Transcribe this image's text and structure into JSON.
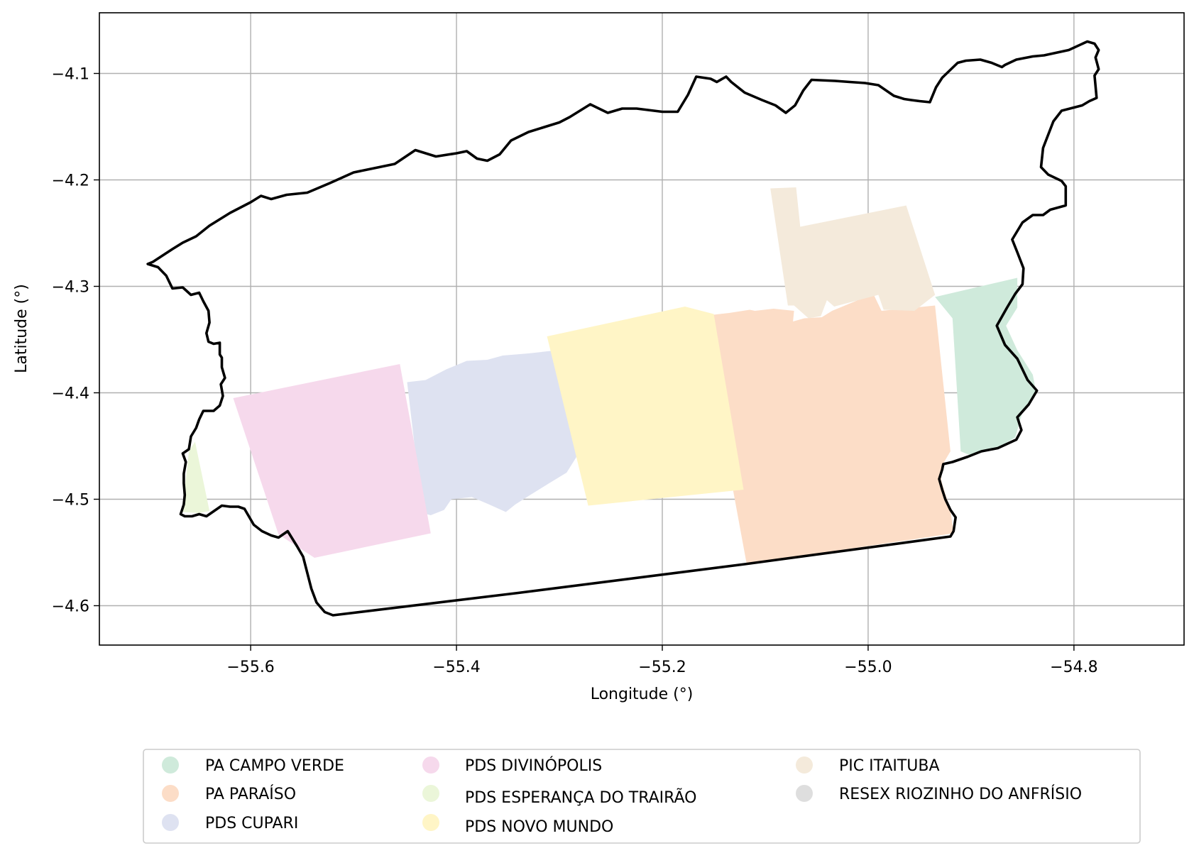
{
  "chart_data": {
    "type": "map",
    "xlabel": "Longitude (°)",
    "ylabel": "Latitude (°)",
    "xlim": [
      -55.747,
      -54.693
    ],
    "ylim": [
      -4.637,
      -4.043
    ],
    "x_ticks": [
      {
        "value": -55.6,
        "label": "−55.6"
      },
      {
        "value": -55.4,
        "label": "−55.4"
      },
      {
        "value": -55.2,
        "label": "−55.2"
      },
      {
        "value": -55.0,
        "label": "−55.0"
      },
      {
        "value": -54.8,
        "label": "−54.8"
      }
    ],
    "y_ticks": [
      {
        "value": -4.1,
        "label": "−4.1"
      },
      {
        "value": -4.2,
        "label": "−4.2"
      },
      {
        "value": -4.3,
        "label": "−4.3"
      },
      {
        "value": -4.4,
        "label": "−4.4"
      },
      {
        "value": -4.5,
        "label": "−4.5"
      },
      {
        "value": -4.6,
        "label": "−4.6"
      }
    ],
    "grid": true,
    "legend_position": "below-center",
    "boundary": {
      "color": "#000000",
      "coords": [
        [
          -55.7,
          -4.279
        ],
        [
          -55.69,
          -4.282
        ],
        [
          -55.682,
          -4.29
        ],
        [
          -55.676,
          -4.302
        ],
        [
          -55.666,
          -4.301
        ],
        [
          -55.658,
          -4.308
        ],
        [
          -55.65,
          -4.306
        ],
        [
          -55.646,
          -4.314
        ],
        [
          -55.641,
          -4.323
        ],
        [
          -55.64,
          -4.334
        ],
        [
          -55.643,
          -4.344
        ],
        [
          -55.641,
          -4.352
        ],
        [
          -55.636,
          -4.354
        ],
        [
          -55.63,
          -4.353
        ],
        [
          -55.63,
          -4.364
        ],
        [
          -55.628,
          -4.367
        ],
        [
          -55.628,
          -4.376
        ],
        [
          -55.625,
          -4.386
        ],
        [
          -55.629,
          -4.392
        ],
        [
          -55.627,
          -4.403
        ],
        [
          -55.63,
          -4.412
        ],
        [
          -55.636,
          -4.417
        ],
        [
          -55.646,
          -4.417
        ],
        [
          -55.65,
          -4.425
        ],
        [
          -55.653,
          -4.433
        ],
        [
          -55.658,
          -4.441
        ],
        [
          -55.66,
          -4.453
        ],
        [
          -55.666,
          -4.457
        ],
        [
          -55.663,
          -4.465
        ],
        [
          -55.665,
          -4.476
        ],
        [
          -55.665,
          -4.485
        ],
        [
          -55.664,
          -4.496
        ],
        [
          -55.665,
          -4.505
        ],
        [
          -55.668,
          -4.514
        ],
        [
          -55.664,
          -4.516
        ],
        [
          -55.657,
          -4.516
        ],
        [
          -55.65,
          -4.514
        ],
        [
          -55.643,
          -4.516
        ],
        [
          -55.637,
          -4.512
        ],
        [
          -55.628,
          -4.506
        ],
        [
          -55.62,
          -4.507
        ],
        [
          -55.612,
          -4.507
        ],
        [
          -55.606,
          -4.509
        ],
        [
          -55.597,
          -4.524
        ],
        [
          -55.589,
          -4.53
        ],
        [
          -55.58,
          -4.534
        ],
        [
          -55.573,
          -4.536
        ],
        [
          -55.564,
          -4.53
        ],
        [
          -55.555,
          -4.544
        ],
        [
          -55.549,
          -4.554
        ],
        [
          -55.545,
          -4.569
        ],
        [
          -55.541,
          -4.584
        ],
        [
          -55.536,
          -4.597
        ],
        [
          -55.528,
          -4.606
        ],
        [
          -55.52,
          -4.609
        ],
        [
          -55.34,
          -4.588
        ],
        [
          -55.12,
          -4.561
        ],
        [
          -54.92,
          -4.535
        ],
        [
          -54.917,
          -4.53
        ],
        [
          -54.915,
          -4.517
        ],
        [
          -54.92,
          -4.51
        ],
        [
          -54.925,
          -4.5
        ],
        [
          -54.928,
          -4.491
        ],
        [
          -54.931,
          -4.481
        ],
        [
          -54.928,
          -4.472
        ],
        [
          -54.927,
          -4.467
        ],
        [
          -54.918,
          -4.465
        ],
        [
          -54.903,
          -4.46
        ],
        [
          -54.89,
          -4.455
        ],
        [
          -54.874,
          -4.452
        ],
        [
          -54.856,
          -4.444
        ],
        [
          -54.851,
          -4.435
        ],
        [
          -54.855,
          -4.423
        ],
        [
          -54.844,
          -4.411
        ],
        [
          -54.836,
          -4.398
        ],
        [
          -54.845,
          -4.388
        ],
        [
          -54.855,
          -4.368
        ],
        [
          -54.867,
          -4.355
        ],
        [
          -54.875,
          -4.337
        ],
        [
          -54.865,
          -4.32
        ],
        [
          -54.857,
          -4.307
        ],
        [
          -54.85,
          -4.298
        ],
        [
          -54.849,
          -4.283
        ],
        [
          -54.855,
          -4.268
        ],
        [
          -54.86,
          -4.256
        ],
        [
          -54.85,
          -4.24
        ],
        [
          -54.84,
          -4.233
        ],
        [
          -54.83,
          -4.233
        ],
        [
          -54.823,
          -4.228
        ],
        [
          -54.808,
          -4.224
        ],
        [
          -54.808,
          -4.206
        ],
        [
          -54.812,
          -4.201
        ],
        [
          -54.825,
          -4.195
        ],
        [
          -54.832,
          -4.188
        ],
        [
          -54.83,
          -4.17
        ],
        [
          -54.824,
          -4.155
        ],
        [
          -54.82,
          -4.145
        ],
        [
          -54.812,
          -4.135
        ],
        [
          -54.792,
          -4.13
        ],
        [
          -54.785,
          -4.126
        ],
        [
          -54.778,
          -4.123
        ],
        [
          -54.779,
          -4.112
        ],
        [
          -54.78,
          -4.102
        ],
        [
          -54.776,
          -4.096
        ],
        [
          -54.779,
          -4.085
        ],
        [
          -54.776,
          -4.078
        ],
        [
          -54.78,
          -4.072
        ],
        [
          -54.787,
          -4.07
        ],
        [
          -54.805,
          -4.078
        ],
        [
          -54.829,
          -4.083
        ],
        [
          -54.84,
          -4.084
        ],
        [
          -54.856,
          -4.087
        ],
        [
          -54.867,
          -4.092
        ],
        [
          -54.87,
          -4.094
        ],
        [
          -54.88,
          -4.09
        ],
        [
          -54.891,
          -4.087
        ],
        [
          -54.905,
          -4.088
        ],
        [
          -54.913,
          -4.09
        ],
        [
          -54.928,
          -4.104
        ],
        [
          -54.934,
          -4.113
        ],
        [
          -54.94,
          -4.127
        ],
        [
          -54.95,
          -4.126
        ],
        [
          -54.958,
          -4.125
        ],
        [
          -54.965,
          -4.124
        ],
        [
          -54.975,
          -4.121
        ],
        [
          -54.99,
          -4.111
        ],
        [
          -55.003,
          -4.109
        ],
        [
          -55.018,
          -4.108
        ],
        [
          -55.032,
          -4.107
        ],
        [
          -55.055,
          -4.106
        ],
        [
          -55.063,
          -4.116
        ],
        [
          -55.071,
          -4.13
        ],
        [
          -55.08,
          -4.137
        ],
        [
          -55.09,
          -4.13
        ],
        [
          -55.103,
          -4.125
        ],
        [
          -55.12,
          -4.118
        ],
        [
          -55.133,
          -4.108
        ],
        [
          -55.138,
          -4.103
        ],
        [
          -55.147,
          -4.108
        ],
        [
          -55.153,
          -4.105
        ],
        [
          -55.167,
          -4.103
        ],
        [
          -55.175,
          -4.12
        ],
        [
          -55.185,
          -4.136
        ],
        [
          -55.2,
          -4.136
        ],
        [
          -55.225,
          -4.133
        ],
        [
          -55.239,
          -4.133
        ],
        [
          -55.253,
          -4.137
        ],
        [
          -55.27,
          -4.129
        ],
        [
          -55.29,
          -4.141
        ],
        [
          -55.3,
          -4.146
        ],
        [
          -55.33,
          -4.155
        ],
        [
          -55.347,
          -4.163
        ],
        [
          -55.358,
          -4.176
        ],
        [
          -55.37,
          -4.182
        ],
        [
          -55.38,
          -4.18
        ],
        [
          -55.39,
          -4.173
        ],
        [
          -55.4,
          -4.175
        ],
        [
          -55.42,
          -4.178
        ],
        [
          -55.44,
          -4.172
        ],
        [
          -55.46,
          -4.185
        ],
        [
          -55.48,
          -4.189
        ],
        [
          -55.5,
          -4.193
        ],
        [
          -55.523,
          -4.203
        ],
        [
          -55.545,
          -4.212
        ],
        [
          -55.565,
          -4.214
        ],
        [
          -55.58,
          -4.218
        ],
        [
          -55.59,
          -4.215
        ],
        [
          -55.6,
          -4.221
        ],
        [
          -55.62,
          -4.231
        ],
        [
          -55.64,
          -4.243
        ],
        [
          -55.653,
          -4.253
        ],
        [
          -55.666,
          -4.259
        ],
        [
          -55.676,
          -4.265
        ],
        [
          -55.695,
          -4.277
        ],
        [
          -55.7,
          -4.279
        ]
      ]
    },
    "series": [
      {
        "name": "PA CAMPO VERDE",
        "color": "#cfeadb",
        "coords": [
          [
            -54.935,
            -4.31
          ],
          [
            -54.855,
            -4.292
          ],
          [
            -54.855,
            -4.32
          ],
          [
            -54.866,
            -4.337
          ],
          [
            -54.855,
            -4.36
          ],
          [
            -54.84,
            -4.383
          ],
          [
            -54.837,
            -4.398
          ],
          [
            -54.85,
            -4.418
          ],
          [
            -54.857,
            -4.442
          ],
          [
            -54.875,
            -4.452
          ],
          [
            -54.9,
            -4.459
          ],
          [
            -54.91,
            -4.455
          ],
          [
            -54.918,
            -4.33
          ]
        ]
      },
      {
        "name": "PA PARAÍSO",
        "color": "#fcddc7",
        "coords": [
          [
            -55.162,
            -4.328
          ],
          [
            -55.135,
            -4.325
          ],
          [
            -55.115,
            -4.322
          ],
          [
            -55.11,
            -4.323
          ],
          [
            -55.092,
            -4.321
          ],
          [
            -55.072,
            -4.323
          ],
          [
            -55.073,
            -4.333
          ],
          [
            -55.062,
            -4.33
          ],
          [
            -55.045,
            -4.329
          ],
          [
            -55.035,
            -4.323
          ],
          [
            -54.995,
            -4.307
          ],
          [
            -54.987,
            -4.323
          ],
          [
            -54.935,
            -4.318
          ],
          [
            -54.92,
            -4.455
          ],
          [
            -54.928,
            -4.468
          ],
          [
            -54.929,
            -4.482
          ],
          [
            -54.925,
            -4.495
          ],
          [
            -54.92,
            -4.51
          ],
          [
            -54.917,
            -4.532
          ],
          [
            -55.118,
            -4.561
          ],
          [
            -55.162,
            -4.33
          ]
        ]
      },
      {
        "name": "PDS CUPARI",
        "color": "#dee2f1",
        "coords": [
          [
            -55.448,
            -4.39
          ],
          [
            -55.43,
            -4.388
          ],
          [
            -55.41,
            -4.378
          ],
          [
            -55.39,
            -4.37
          ],
          [
            -55.37,
            -4.369
          ],
          [
            -55.355,
            -4.365
          ],
          [
            -55.33,
            -4.363
          ],
          [
            -55.302,
            -4.36
          ],
          [
            -55.285,
            -4.39
          ],
          [
            -55.28,
            -4.455
          ],
          [
            -55.293,
            -4.475
          ],
          [
            -55.31,
            -4.485
          ],
          [
            -55.33,
            -4.497
          ],
          [
            -55.343,
            -4.505
          ],
          [
            -55.352,
            -4.512
          ],
          [
            -55.368,
            -4.505
          ],
          [
            -55.385,
            -4.498
          ],
          [
            -55.405,
            -4.5
          ],
          [
            -55.412,
            -4.51
          ],
          [
            -55.425,
            -4.515
          ],
          [
            -55.433,
            -4.513
          ],
          [
            -55.448,
            -4.39
          ]
        ]
      },
      {
        "name": "PDS DIVINÓPOLIS",
        "color": "#f6d9ec",
        "coords": [
          [
            -55.617,
            -4.405
          ],
          [
            -55.455,
            -4.373
          ],
          [
            -55.425,
            -4.532
          ],
          [
            -55.538,
            -4.555
          ],
          [
            -55.573,
            -4.533
          ],
          [
            -55.617,
            -4.405
          ]
        ]
      },
      {
        "name": "PDS ESPERANÇA DO TRAIRÃO",
        "color": "#ebf6d9",
        "coords": [
          [
            -55.66,
            -4.455
          ],
          [
            -55.654,
            -4.446
          ],
          [
            -55.64,
            -4.511
          ],
          [
            -55.65,
            -4.513
          ],
          [
            -55.666,
            -4.512
          ],
          [
            -55.664,
            -4.49
          ],
          [
            -55.66,
            -4.455
          ]
        ]
      },
      {
        "name": "PDS NOVO MUNDO",
        "color": "#fff5c6",
        "coords": [
          [
            -55.312,
            -4.347
          ],
          [
            -55.178,
            -4.319
          ],
          [
            -55.15,
            -4.326
          ],
          [
            -55.121,
            -4.491
          ],
          [
            -55.272,
            -4.506
          ],
          [
            -55.312,
            -4.347
          ]
        ]
      },
      {
        "name": "PIC ITAITUBA",
        "color": "#f4eadb",
        "coords": [
          [
            -55.095,
            -4.208
          ],
          [
            -55.07,
            -4.207
          ],
          [
            -55.066,
            -4.244
          ],
          [
            -54.963,
            -4.224
          ],
          [
            -54.935,
            -4.308
          ],
          [
            -54.955,
            -4.323
          ],
          [
            -54.985,
            -4.322
          ],
          [
            -54.99,
            -4.308
          ],
          [
            -55.033,
            -4.319
          ],
          [
            -55.04,
            -4.313
          ],
          [
            -55.046,
            -4.328
          ],
          [
            -55.058,
            -4.33
          ],
          [
            -55.072,
            -4.318
          ],
          [
            -55.078,
            -4.318
          ],
          [
            -55.095,
            -4.208
          ]
        ]
      },
      {
        "name": "RESEX RIOZINHO DO ANFRÍSIO",
        "color": "#dedede",
        "coords": []
      }
    ]
  }
}
